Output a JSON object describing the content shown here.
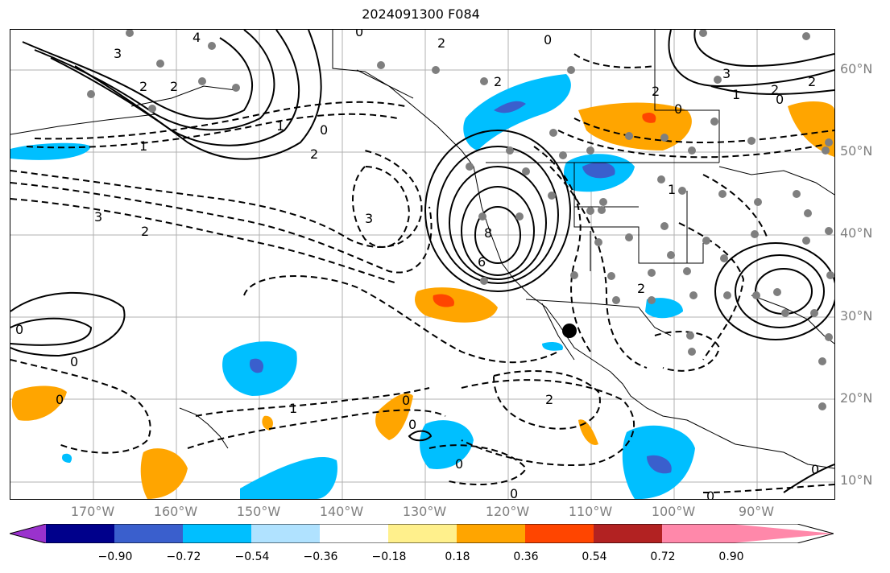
{
  "title": "2024091300 F084",
  "map": {
    "lat_labels": [
      "60°N",
      "50°N",
      "40°N",
      "30°N",
      "20°N",
      "10°N"
    ],
    "lon_labels": [
      "170°W",
      "160°W",
      "150°W",
      "140°W",
      "130°W",
      "120°W",
      "110°W",
      "100°W",
      "90°W"
    ],
    "contour_labels": [
      "4",
      "3",
      "2",
      "2",
      "1",
      "0",
      "1",
      "2",
      "3",
      "2",
      "3",
      "8",
      "6",
      "2",
      "0",
      "2",
      "0",
      "2",
      "3",
      "2",
      "1",
      "2",
      "0",
      "1",
      "0",
      "0",
      "0",
      "0",
      "1",
      "2",
      "0",
      "0",
      "0",
      "0",
      "0",
      "2",
      "0"
    ]
  },
  "colorbar": {
    "ticks": [
      "−0.90",
      "−0.72",
      "−0.54",
      "−0.36",
      "−0.18",
      "0.18",
      "0.36",
      "0.54",
      "0.72",
      "0.90"
    ],
    "colors": [
      "#9a32cd",
      "#00008b",
      "#3a5fcd",
      "#00bfff",
      "#b0e2ff",
      "#ffffff",
      "#fff08c",
      "#ffa500",
      "#ff4500",
      "#b22222",
      "#ff88aa"
    ]
  }
}
